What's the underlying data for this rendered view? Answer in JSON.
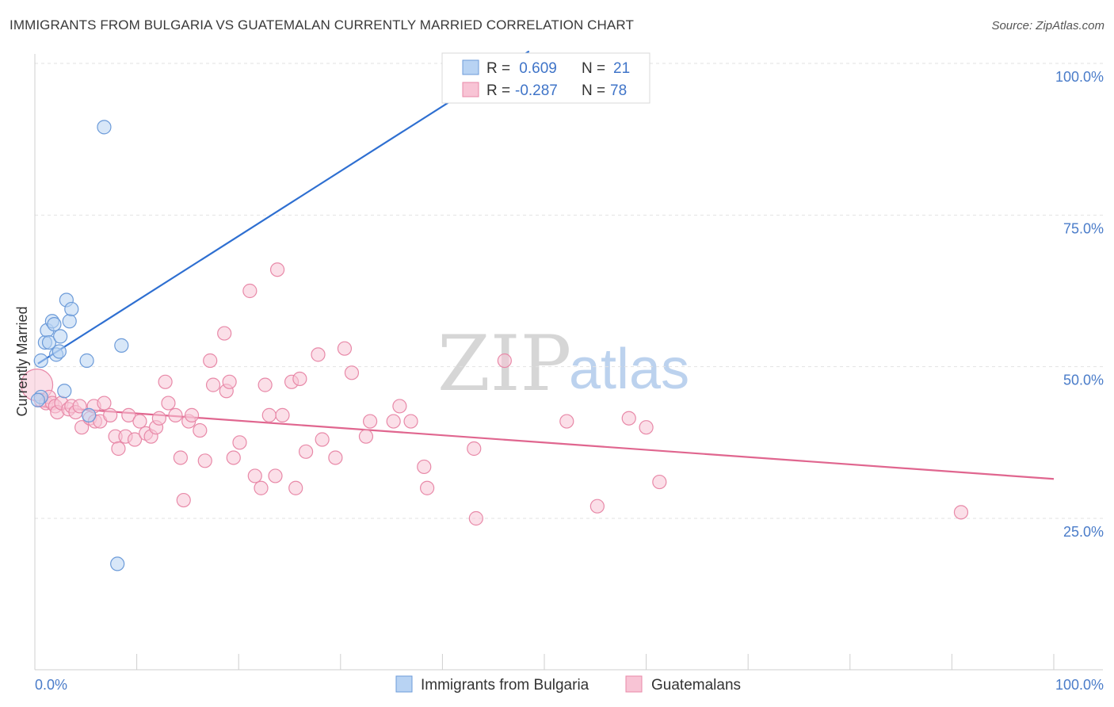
{
  "header": {
    "title": "IMMIGRANTS FROM BULGARIA VS GUATEMALAN CURRENTLY MARRIED CORRELATION CHART",
    "source": "Source: ZipAtlas.com"
  },
  "watermark": {
    "zip": "ZIP",
    "atlas": "atlas"
  },
  "colors": {
    "blue_fill": "#b8d3f3",
    "blue_stroke": "#6c9bd9",
    "blue_line": "#2e6fd1",
    "pink_fill": "#f8c4d5",
    "pink_stroke": "#e889a8",
    "pink_line": "#e0668f",
    "grid": "#e2e2e2",
    "tick_text": "#4a7cc9"
  },
  "legend": {
    "rows": [
      {
        "r_label": "R =",
        "r_value": " 0.609",
        "n_label": "N =",
        "n_value": "21",
        "color": "blue"
      },
      {
        "r_label": "R =",
        "r_value": "-0.287",
        "n_label": "N =",
        "n_value": "78",
        "color": "pink"
      }
    ]
  },
  "bottom_legend": {
    "items": [
      {
        "label": "Immigrants from Bulgaria",
        "color": "blue"
      },
      {
        "label": "Guatemalans",
        "color": "pink"
      }
    ]
  },
  "chart_data": {
    "type": "scatter",
    "title": "IMMIGRANTS FROM BULGARIA VS GUATEMALAN CURRENTLY MARRIED CORRELATION CHART",
    "xlabel": "",
    "ylabel": "Currently Married",
    "xlim": [
      0,
      100
    ],
    "ylim": [
      0,
      103
    ],
    "x_tick_labels": [
      {
        "value": 0,
        "label": "0.0%"
      },
      {
        "value": 100,
        "label": "100.0%"
      }
    ],
    "x_minor_ticks": [
      0,
      10,
      20,
      30,
      40,
      50,
      60,
      70,
      80,
      90,
      100
    ],
    "y_ticks": [
      {
        "value": 25,
        "label": "25.0%"
      },
      {
        "value": 50,
        "label": "50.0%"
      },
      {
        "value": 75,
        "label": "75.0%"
      },
      {
        "value": 100,
        "label": "100.0%"
      }
    ],
    "grid": true,
    "legend_position": "top-center",
    "series": [
      {
        "name": "Immigrants from Bulgaria",
        "color": "blue",
        "points": [
          [
            0.6,
            51
          ],
          [
            0.6,
            45
          ],
          [
            1.0,
            54
          ],
          [
            1.2,
            56
          ],
          [
            1.4,
            54
          ],
          [
            1.7,
            57.5
          ],
          [
            1.9,
            57
          ],
          [
            2.1,
            52
          ],
          [
            2.4,
            52.5
          ],
          [
            2.5,
            55
          ],
          [
            2.9,
            46
          ],
          [
            3.1,
            61
          ],
          [
            3.4,
            57.5
          ],
          [
            3.6,
            59.5
          ],
          [
            5.1,
            51
          ],
          [
            5.3,
            42
          ],
          [
            6.8,
            89.5
          ],
          [
            8.1,
            17.5
          ],
          [
            8.5,
            53.5
          ],
          [
            47.3,
            100.5
          ],
          [
            0.3,
            44.5
          ]
        ],
        "trend": {
          "x": [
            0.3,
            48.5
          ],
          "y": [
            50.5,
            102
          ]
        }
      },
      {
        "name": "Guatemalans",
        "color": "pink",
        "points": [
          [
            0.2,
            47
          ],
          [
            0.6,
            44.5
          ],
          [
            1.1,
            44
          ],
          [
            1.4,
            45
          ],
          [
            1.7,
            44
          ],
          [
            2.0,
            43.5
          ],
          [
            2.2,
            42.5
          ],
          [
            2.6,
            44
          ],
          [
            3.3,
            43
          ],
          [
            3.6,
            43.5
          ],
          [
            4.0,
            42.5
          ],
          [
            4.4,
            43.5
          ],
          [
            4.6,
            40
          ],
          [
            5.4,
            41.5
          ],
          [
            5.8,
            43.5
          ],
          [
            5.9,
            41
          ],
          [
            6.4,
            41
          ],
          [
            6.8,
            44
          ],
          [
            7.4,
            42
          ],
          [
            7.9,
            38.5
          ],
          [
            8.2,
            36.5
          ],
          [
            8.9,
            38.5
          ],
          [
            9.2,
            42
          ],
          [
            9.8,
            38
          ],
          [
            10.3,
            41
          ],
          [
            10.9,
            39
          ],
          [
            11.4,
            38.5
          ],
          [
            11.9,
            40
          ],
          [
            12.2,
            41.5
          ],
          [
            12.8,
            47.5
          ],
          [
            13.1,
            44
          ],
          [
            13.8,
            42
          ],
          [
            14.3,
            35
          ],
          [
            14.6,
            28
          ],
          [
            15.1,
            41
          ],
          [
            15.4,
            42
          ],
          [
            16.2,
            39.5
          ],
          [
            16.7,
            34.5
          ],
          [
            17.2,
            51
          ],
          [
            17.5,
            47
          ],
          [
            18.6,
            55.5
          ],
          [
            18.8,
            46
          ],
          [
            19.1,
            47.5
          ],
          [
            19.5,
            35
          ],
          [
            20.1,
            37.5
          ],
          [
            21.1,
            62.5
          ],
          [
            21.6,
            32
          ],
          [
            22.2,
            30
          ],
          [
            22.6,
            47
          ],
          [
            23.0,
            42
          ],
          [
            23.6,
            32
          ],
          [
            23.8,
            66
          ],
          [
            24.3,
            42
          ],
          [
            25.2,
            47.5
          ],
          [
            25.6,
            30
          ],
          [
            26.0,
            48
          ],
          [
            26.6,
            36
          ],
          [
            27.8,
            52
          ],
          [
            28.2,
            38
          ],
          [
            29.5,
            35
          ],
          [
            30.4,
            53
          ],
          [
            31.1,
            49
          ],
          [
            32.5,
            38.5
          ],
          [
            32.9,
            41
          ],
          [
            35.2,
            41
          ],
          [
            35.8,
            43.5
          ],
          [
            36.9,
            41
          ],
          [
            38.2,
            33.5
          ],
          [
            38.5,
            30
          ],
          [
            43.1,
            36.5
          ],
          [
            43.3,
            25
          ],
          [
            46.1,
            51
          ],
          [
            52.2,
            41
          ],
          [
            55.2,
            27
          ],
          [
            58.3,
            41.5
          ],
          [
            60.0,
            40
          ],
          [
            61.3,
            31
          ],
          [
            90.9,
            26
          ]
        ],
        "trend": {
          "x": [
            0.0,
            100.0
          ],
          "y": [
            43.5,
            31.5
          ]
        }
      }
    ]
  }
}
